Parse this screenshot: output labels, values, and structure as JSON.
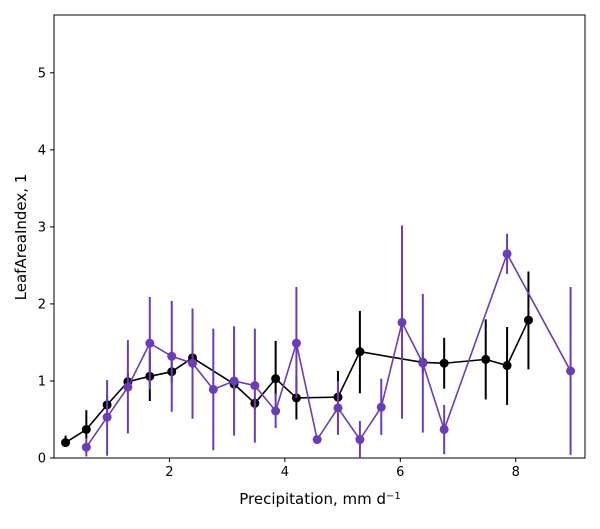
{
  "chart_data": {
    "type": "line",
    "xlabel": "Precipitation,  mm d",
    "xlabel_sup": "−1",
    "ylabel": "LeafAreaIndex,  1",
    "xlim": [
      0.0,
      9.2
    ],
    "ylim": [
      0,
      5.75
    ],
    "x_ticks": [
      2,
      4,
      6,
      8
    ],
    "y_ticks": [
      0,
      1,
      2,
      3,
      4,
      5
    ],
    "grid": false,
    "series": [
      {
        "color": "#000000",
        "x": [
          0.2,
          0.56,
          0.92,
          1.28,
          1.66,
          2.04,
          2.4,
          3.12,
          3.48,
          3.84,
          4.2,
          4.92,
          5.3,
          6.39,
          6.76,
          7.48,
          7.85,
          8.22
        ],
        "y": [
          0.2,
          0.37,
          0.69,
          0.99,
          1.06,
          1.12,
          1.3,
          0.96,
          0.71,
          1.03,
          0.78,
          0.79,
          1.38,
          1.24,
          1.23,
          1.28,
          1.2,
          1.79
        ],
        "yerr_low": [
          0.15,
          0.25,
          0.58,
          0.86,
          0.74,
          0.98,
          1.16,
          0.86,
          0.63,
          0.8,
          0.5,
          0.72,
          0.84,
          1.1,
          0.9,
          0.76,
          0.69,
          1.15
        ],
        "yerr_high": [
          0.29,
          0.62,
          0.8,
          1.1,
          1.38,
          1.26,
          1.44,
          1.06,
          0.79,
          1.52,
          1.06,
          1.13,
          1.91,
          1.38,
          1.56,
          1.8,
          1.7,
          2.42
        ]
      },
      {
        "color": "#6a3db8",
        "x": [
          0.56,
          0.92,
          1.28,
          1.66,
          2.04,
          2.4,
          2.76,
          3.12,
          3.48,
          3.84,
          4.2,
          4.56,
          4.92,
          5.3,
          5.67,
          6.03,
          6.39,
          6.76,
          7.85,
          8.95
        ],
        "y": [
          0.14,
          0.53,
          0.92,
          1.49,
          1.32,
          1.23,
          0.89,
          1.0,
          0.94,
          0.61,
          1.49,
          0.24,
          0.65,
          0.24,
          0.66,
          1.76,
          1.23,
          0.37,
          2.65,
          1.13
        ],
        "yerr_low": [
          0.02,
          0.03,
          0.32,
          0.89,
          0.6,
          0.51,
          0.1,
          0.29,
          0.2,
          0.39,
          0.78,
          0.22,
          0.3,
          0.0,
          0.3,
          0.51,
          0.33,
          0.05,
          2.39,
          0.04
        ],
        "yerr_high": [
          0.26,
          1.01,
          1.53,
          2.09,
          2.04,
          1.94,
          1.68,
          1.71,
          1.68,
          0.84,
          2.22,
          0.26,
          1.0,
          0.48,
          1.03,
          3.02,
          2.13,
          0.69,
          2.91,
          2.22
        ]
      }
    ]
  }
}
